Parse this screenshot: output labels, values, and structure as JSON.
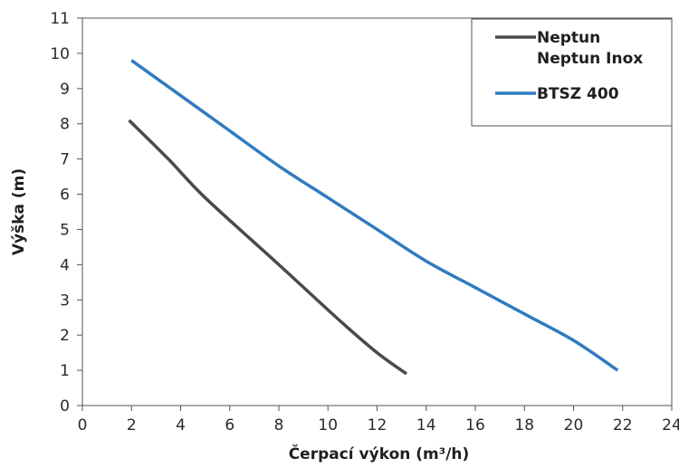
{
  "chart_data": {
    "type": "line",
    "xlabel": "Čerpací výkon (m³/h)",
    "ylabel": "Výška (m)",
    "xlim": [
      0,
      24
    ],
    "ylim": [
      0,
      11
    ],
    "x_ticks": [
      0,
      2,
      4,
      6,
      8,
      10,
      12,
      14,
      16,
      18,
      20,
      22,
      24
    ],
    "y_ticks": [
      0,
      1,
      2,
      3,
      4,
      5,
      6,
      7,
      8,
      9,
      10,
      11
    ],
    "grid": false,
    "legend_position": "top-right",
    "series": [
      {
        "name": [
          "Neptun",
          "Neptun Inox"
        ],
        "color": "#4a4a4a",
        "x": [
          1.9,
          3.5,
          5.0,
          8.0,
          10.5,
          12.0,
          13.2
        ],
        "y": [
          8.1,
          7.0,
          5.9,
          4.0,
          2.4,
          1.5,
          0.9
        ]
      },
      {
        "name": [
          "BTSZ 400"
        ],
        "color": "#2f7bbf",
        "x": [
          2.0,
          4.0,
          6.0,
          8.0,
          10.0,
          12.0,
          14.0,
          16.0,
          18.0,
          20.0,
          21.8
        ],
        "y": [
          9.8,
          8.8,
          7.8,
          6.8,
          5.9,
          5.0,
          4.1,
          3.35,
          2.6,
          1.85,
          1.0
        ]
      }
    ]
  }
}
